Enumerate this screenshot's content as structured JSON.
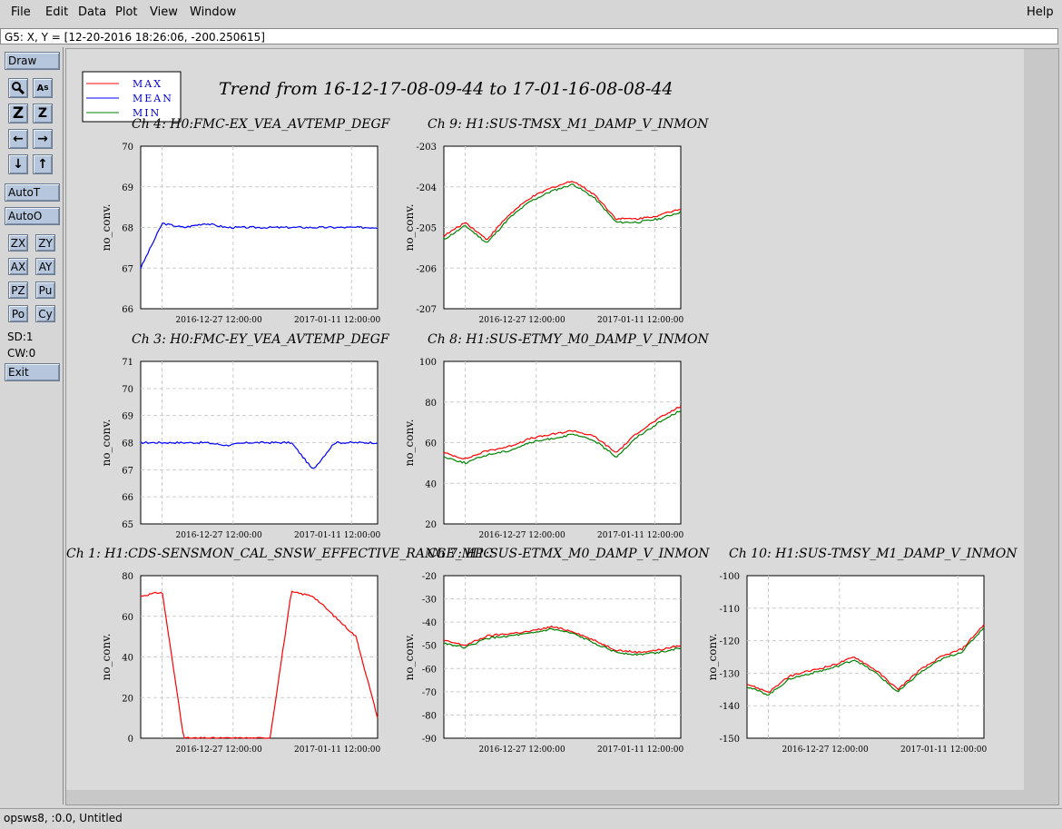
{
  "menubar": {
    "file": "File",
    "edit": "Edit",
    "data": "Data",
    "plot": "Plot",
    "view": "View",
    "window": "Window",
    "help": "Help"
  },
  "status": "G5: X, Y = [12-20-2016 18:26:06, -200.250615]",
  "toolbar": {
    "draw": "Draw",
    "autot": "AutoT",
    "autoo": "AutoO",
    "zx": "ZX",
    "zy": "ZY",
    "ax": "AX",
    "ay": "AY",
    "pz": "PZ",
    "pu": "Pu",
    "po": "Po",
    "cy": "Cy",
    "sd": "SD:1",
    "cw": "CW:0",
    "exit": "Exit"
  },
  "plot": {
    "title": "Trend from 16-12-17-08-09-44 to 17-01-16-08-08-44",
    "legend": [
      {
        "name": "MAX",
        "color": "#ff0000"
      },
      {
        "name": "MEAN",
        "color": "#0000ff"
      },
      {
        "name": "MIN",
        "color": "#008000"
      }
    ],
    "x_tick_labels": [
      "2016-12-27 12:00:00",
      "2017-01-11 12:00:00"
    ],
    "ylabel": "no_conv."
  },
  "bottom": "opsws8, :0.0, Untitled",
  "chart_data": [
    {
      "type": "line",
      "title": "Ch 4: H0:FMC-EX_VEA_AVTEMP_DEGF",
      "ylabel": "no_conv.",
      "ylim": [
        66,
        70
      ],
      "yticks": [
        "70",
        "69",
        "68",
        "67",
        "66"
      ],
      "series": [
        {
          "name": "MEAN",
          "values": [
            67.0,
            68.1,
            68.0,
            68.1,
            68.0,
            68.0,
            68.0,
            68.0,
            68.0,
            68.0,
            68.0,
            68.0
          ]
        }
      ]
    },
    {
      "type": "line",
      "title": "Ch 9: H1:SUS-TMSX_M1_DAMP_V_INMON",
      "ylabel": "no_conv.",
      "ylim": [
        -207.5,
        -202.8
      ],
      "yticks": [
        "-203",
        "-204",
        "-205",
        "-206",
        "-207"
      ],
      "series": [
        {
          "name": "MAX",
          "values": [
            -205.4,
            -205.0,
            -205.5,
            -204.8,
            -204.3,
            -204.0,
            -203.8,
            -204.2,
            -204.9,
            -204.9,
            -204.8,
            -204.6
          ]
        },
        {
          "name": "MIN",
          "values": [
            -205.5,
            -205.1,
            -205.6,
            -204.9,
            -204.4,
            -204.1,
            -203.9,
            -204.3,
            -205.0,
            -205.0,
            -204.9,
            -204.7
          ]
        }
      ]
    },
    {
      "type": "line",
      "title": "Ch 3: H0:FMC-EY_VEA_AVTEMP_DEGF",
      "ylabel": "no_conv.",
      "ylim": [
        65,
        71
      ],
      "yticks": [
        "71",
        "70",
        "69",
        "68",
        "67",
        "66",
        "65"
      ],
      "series": [
        {
          "name": "MEAN",
          "values": [
            68.0,
            68.0,
            68.0,
            68.0,
            67.9,
            68.0,
            68.0,
            68.0,
            67.0,
            68.0,
            68.0,
            68.0
          ]
        }
      ]
    },
    {
      "type": "line",
      "title": "Ch 8: H1:SUS-ETMY_M0_DAMP_V_INMON",
      "ylabel": "no_conv.",
      "ylim": [
        20,
        100
      ],
      "yticks": [
        "100",
        "80",
        "60",
        "40",
        "20"
      ],
      "series": [
        {
          "name": "MAX",
          "values": [
            55,
            52,
            56,
            58,
            62,
            64,
            66,
            63,
            55,
            65,
            72,
            78
          ]
        },
        {
          "name": "MIN",
          "values": [
            53,
            50,
            54,
            56,
            60,
            62,
            64,
            61,
            53,
            63,
            70,
            76
          ]
        }
      ]
    },
    {
      "type": "line",
      "title": "Ch 1: H1:CDS-SENSMON_CAL_SNSW_EFFECTIVE_RANGE_MPC",
      "ylabel": "no_conv.",
      "ylim": [
        0,
        80
      ],
      "yticks": [
        "80",
        "60",
        "40",
        "20",
        "0"
      ],
      "series": [
        {
          "name": "MAX",
          "values": [
            70,
            72,
            0,
            0,
            0,
            0,
            0,
            72,
            70,
            60,
            50,
            10
          ]
        }
      ]
    },
    {
      "type": "line",
      "title": "Ch 7: H1:SUS-ETMX_M0_DAMP_V_INMON",
      "ylabel": "no_conv.",
      "ylim": [
        -90,
        -20
      ],
      "yticks": [
        "-20",
        "-30",
        "-40",
        "-50",
        "-60",
        "-70",
        "-80",
        "-90"
      ],
      "series": [
        {
          "name": "MAX",
          "values": [
            -48,
            -50,
            -46,
            -45,
            -44,
            -42,
            -44,
            -48,
            -52,
            -53,
            -52,
            -50
          ]
        },
        {
          "name": "MIN",
          "values": [
            -49,
            -51,
            -47,
            -46,
            -45,
            -43,
            -45,
            -49,
            -53,
            -54,
            -53,
            -51
          ]
        }
      ]
    },
    {
      "type": "line",
      "title": "Ch 10: H1:SUS-TMSY_M1_DAMP_V_INMON",
      "ylabel": "no_conv.",
      "ylim": [
        -155,
        -95
      ],
      "yticks": [
        "-100",
        "-110",
        "-120",
        "-130",
        "-140",
        "-150"
      ],
      "series": [
        {
          "name": "MAX",
          "values": [
            -135,
            -138,
            -132,
            -130,
            -128,
            -125,
            -130,
            -137,
            -130,
            -125,
            -122,
            -113
          ]
        },
        {
          "name": "MIN",
          "values": [
            -136,
            -139,
            -133,
            -131,
            -129,
            -126,
            -131,
            -138,
            -131,
            -126,
            -123,
            -114
          ]
        }
      ]
    }
  ]
}
